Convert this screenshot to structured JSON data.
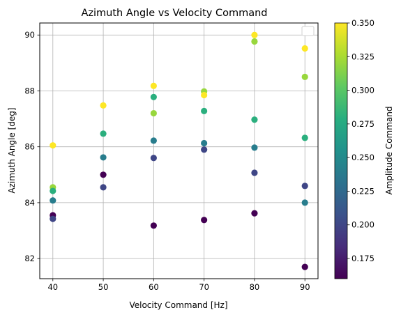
{
  "chart_data": {
    "type": "scatter",
    "title": "Azimuth Angle vs Velocity Command",
    "xlabel": "Velocity Command [Hz]",
    "ylabel": "Azimuth Angle [deg]",
    "xlim": [
      37.4,
      92.6
    ],
    "ylim": [
      81.28,
      90.43
    ],
    "xticks": [
      "40",
      "50",
      "60",
      "70",
      "80",
      "90"
    ],
    "xtick_values": [
      40,
      50,
      60,
      70,
      80,
      90
    ],
    "yticks": [
      "82",
      "84",
      "86",
      "88",
      "90"
    ],
    "ytick_values": [
      82,
      84,
      86,
      88,
      90
    ],
    "grid": true,
    "colorbar": {
      "label": "Amplitude Command",
      "colormap": "viridis",
      "range": [
        0.16,
        0.35
      ],
      "ticks": [
        "0.175",
        "0.200",
        "0.225",
        "0.250",
        "0.275",
        "0.300",
        "0.325",
        "0.350"
      ],
      "tick_values": [
        0.175,
        0.2,
        0.225,
        0.25,
        0.275,
        0.3,
        0.325,
        0.35
      ]
    },
    "legend": {
      "placement": "upper right",
      "entries": []
    },
    "points": [
      {
        "x": 40,
        "y": 86.05,
        "amp": 0.35
      },
      {
        "x": 40,
        "y": 84.55,
        "amp": 0.32
      },
      {
        "x": 40,
        "y": 84.42,
        "amp": 0.28
      },
      {
        "x": 40,
        "y": 84.08,
        "amp": 0.24
      },
      {
        "x": 40,
        "y": 83.55,
        "amp": 0.16
      },
      {
        "x": 40,
        "y": 83.42,
        "amp": 0.2
      },
      {
        "x": 50,
        "y": 87.48,
        "amp": 0.35
      },
      {
        "x": 50,
        "y": 86.47,
        "amp": 0.28
      },
      {
        "x": 50,
        "y": 85.62,
        "amp": 0.24
      },
      {
        "x": 50,
        "y": 85.0,
        "amp": 0.16
      },
      {
        "x": 50,
        "y": 84.55,
        "amp": 0.2
      },
      {
        "x": 60,
        "y": 88.18,
        "amp": 0.35
      },
      {
        "x": 60,
        "y": 87.78,
        "amp": 0.28
      },
      {
        "x": 60,
        "y": 87.2,
        "amp": 0.32
      },
      {
        "x": 60,
        "y": 86.22,
        "amp": 0.24
      },
      {
        "x": 60,
        "y": 85.6,
        "amp": 0.2
      },
      {
        "x": 60,
        "y": 83.18,
        "amp": 0.16
      },
      {
        "x": 70,
        "y": 87.98,
        "amp": 0.32
      },
      {
        "x": 70,
        "y": 87.85,
        "amp": 0.35
      },
      {
        "x": 70,
        "y": 87.28,
        "amp": 0.28
      },
      {
        "x": 70,
        "y": 86.13,
        "amp": 0.24
      },
      {
        "x": 70,
        "y": 85.9,
        "amp": 0.2
      },
      {
        "x": 70,
        "y": 83.38,
        "amp": 0.16
      },
      {
        "x": 80,
        "y": 90.0,
        "amp": 0.35
      },
      {
        "x": 80,
        "y": 89.77,
        "amp": 0.32
      },
      {
        "x": 80,
        "y": 86.97,
        "amp": 0.28
      },
      {
        "x": 80,
        "y": 85.97,
        "amp": 0.24
      },
      {
        "x": 80,
        "y": 85.07,
        "amp": 0.2
      },
      {
        "x": 80,
        "y": 83.62,
        "amp": 0.16
      },
      {
        "x": 90,
        "y": 89.52,
        "amp": 0.35
      },
      {
        "x": 90,
        "y": 88.5,
        "amp": 0.32
      },
      {
        "x": 90,
        "y": 86.32,
        "amp": 0.28
      },
      {
        "x": 90,
        "y": 84.6,
        "amp": 0.2
      },
      {
        "x": 90,
        "y": 84.0,
        "amp": 0.24
      },
      {
        "x": 90,
        "y": 81.7,
        "amp": 0.16
      }
    ]
  }
}
